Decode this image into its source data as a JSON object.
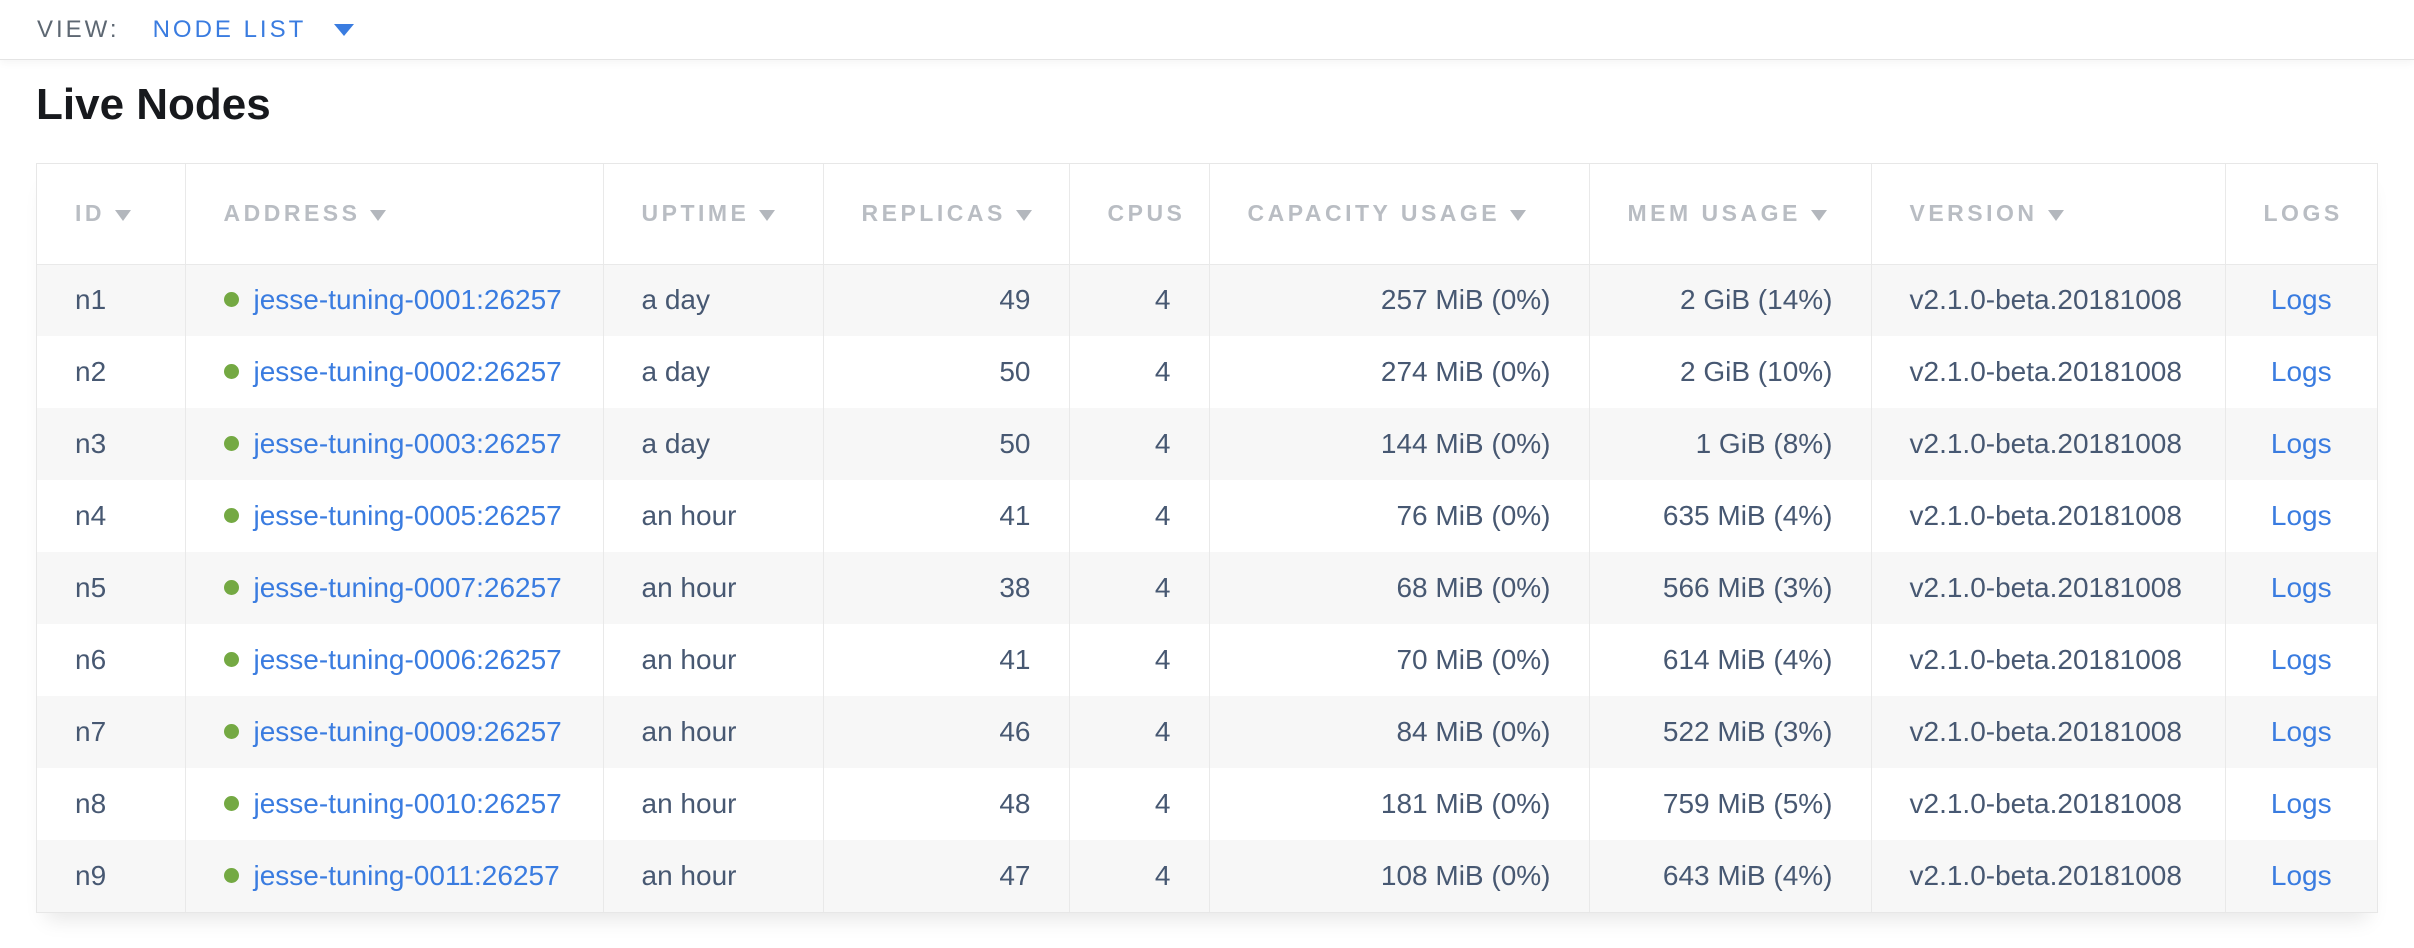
{
  "view_bar": {
    "label": "VIEW:",
    "selected": "NODE LIST"
  },
  "page": {
    "title": "Live Nodes"
  },
  "colors": {
    "accent_blue": "#3a7ce0",
    "healthy_green": "#74a943",
    "header_gray": "#b9bdc3",
    "cell_slate": "#475872"
  },
  "table": {
    "columns": [
      {
        "key": "id",
        "label": "ID",
        "sortable": true
      },
      {
        "key": "address",
        "label": "ADDRESS",
        "sortable": true
      },
      {
        "key": "uptime",
        "label": "UPTIME",
        "sortable": true
      },
      {
        "key": "replicas",
        "label": "REPLICAS",
        "sortable": true
      },
      {
        "key": "cpus",
        "label": "CPUS",
        "sortable": false
      },
      {
        "key": "capacity_usage",
        "label": "CAPACITY USAGE",
        "sortable": true
      },
      {
        "key": "mem_usage",
        "label": "MEM USAGE",
        "sortable": true
      },
      {
        "key": "version",
        "label": "VERSION",
        "sortable": true
      },
      {
        "key": "logs",
        "label": "LOGS",
        "sortable": false
      }
    ],
    "rows": [
      {
        "id": "n1",
        "status": "healthy",
        "address": "jesse-tuning-0001:26257",
        "uptime": "a day",
        "replicas": "49",
        "cpus": "4",
        "capacity_usage": "257 MiB (0%)",
        "mem_usage": "2 GiB (14%)",
        "version": "v2.1.0-beta.20181008",
        "logs": "Logs"
      },
      {
        "id": "n2",
        "status": "healthy",
        "address": "jesse-tuning-0002:26257",
        "uptime": "a day",
        "replicas": "50",
        "cpus": "4",
        "capacity_usage": "274 MiB (0%)",
        "mem_usage": "2 GiB (10%)",
        "version": "v2.1.0-beta.20181008",
        "logs": "Logs"
      },
      {
        "id": "n3",
        "status": "healthy",
        "address": "jesse-tuning-0003:26257",
        "uptime": "a day",
        "replicas": "50",
        "cpus": "4",
        "capacity_usage": "144 MiB (0%)",
        "mem_usage": "1 GiB (8%)",
        "version": "v2.1.0-beta.20181008",
        "logs": "Logs"
      },
      {
        "id": "n4",
        "status": "healthy",
        "address": "jesse-tuning-0005:26257",
        "uptime": "an hour",
        "replicas": "41",
        "cpus": "4",
        "capacity_usage": "76 MiB (0%)",
        "mem_usage": "635 MiB (4%)",
        "version": "v2.1.0-beta.20181008",
        "logs": "Logs"
      },
      {
        "id": "n5",
        "status": "healthy",
        "address": "jesse-tuning-0007:26257",
        "uptime": "an hour",
        "replicas": "38",
        "cpus": "4",
        "capacity_usage": "68 MiB (0%)",
        "mem_usage": "566 MiB (3%)",
        "version": "v2.1.0-beta.20181008",
        "logs": "Logs"
      },
      {
        "id": "n6",
        "status": "healthy",
        "address": "jesse-tuning-0006:26257",
        "uptime": "an hour",
        "replicas": "41",
        "cpus": "4",
        "capacity_usage": "70 MiB (0%)",
        "mem_usage": "614 MiB (4%)",
        "version": "v2.1.0-beta.20181008",
        "logs": "Logs"
      },
      {
        "id": "n7",
        "status": "healthy",
        "address": "jesse-tuning-0009:26257",
        "uptime": "an hour",
        "replicas": "46",
        "cpus": "4",
        "capacity_usage": "84 MiB (0%)",
        "mem_usage": "522 MiB (3%)",
        "version": "v2.1.0-beta.20181008",
        "logs": "Logs"
      },
      {
        "id": "n8",
        "status": "healthy",
        "address": "jesse-tuning-0010:26257",
        "uptime": "an hour",
        "replicas": "48",
        "cpus": "4",
        "capacity_usage": "181 MiB (0%)",
        "mem_usage": "759 MiB (5%)",
        "version": "v2.1.0-beta.20181008",
        "logs": "Logs"
      },
      {
        "id": "n9",
        "status": "healthy",
        "address": "jesse-tuning-0011:26257",
        "uptime": "an hour",
        "replicas": "47",
        "cpus": "4",
        "capacity_usage": "108 MiB (0%)",
        "mem_usage": "643 MiB (4%)",
        "version": "v2.1.0-beta.20181008",
        "logs": "Logs"
      }
    ]
  }
}
